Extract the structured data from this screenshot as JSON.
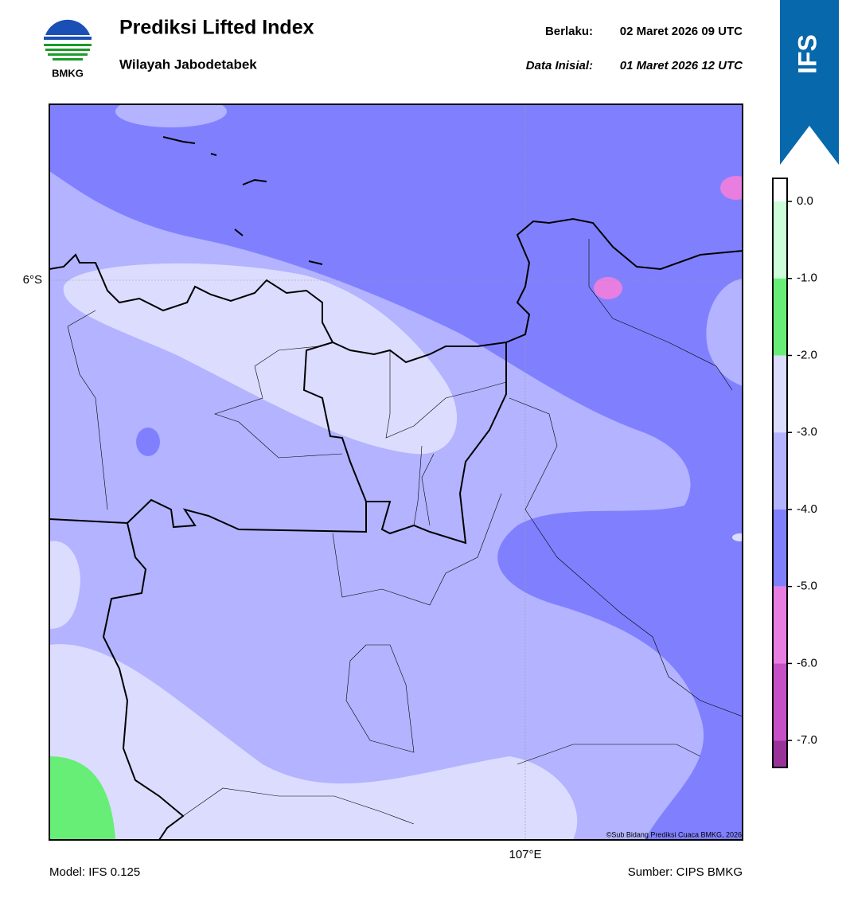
{
  "header": {
    "logo_text": "BMKG",
    "title": "Prediksi Lifted Index",
    "subtitle": "Wilayah Jabodetabek",
    "valid_label": "Berlaku:",
    "valid_time": "02 Maret 2026 09 UTC",
    "init_label": "Data Inisial:",
    "init_time": "01 Maret 2026 12 UTC",
    "badge": "IFS"
  },
  "map": {
    "lat_label": "6°S",
    "lon_label": "107°E",
    "copyright": "©Sub Bidang Prediksi Cuaca BMKG, 2026"
  },
  "colorbar": {
    "lim": [
      -7.35,
      0.3
    ],
    "bounds": [
      0.3,
      0,
      -1,
      -2,
      -3,
      -4,
      -5,
      -6,
      -7,
      -7.35
    ],
    "colors": [
      "#ffffff",
      "#ccffd9",
      "#66ee77",
      "#dcdcff",
      "#b3b3ff",
      "#8080ff",
      "#e87ee0",
      "#c650c6",
      "#993399"
    ],
    "ticks": [
      {
        "value": 0,
        "label": "0.0"
      },
      {
        "value": -1,
        "label": "-1.0"
      },
      {
        "value": -2,
        "label": "-2.0"
      },
      {
        "value": -3,
        "label": "-3.0"
      },
      {
        "value": -4,
        "label": "-4.0"
      },
      {
        "value": -5,
        "label": "-5.0"
      },
      {
        "value": -6,
        "label": "-6.0"
      },
      {
        "value": -7,
        "label": "-7.0"
      }
    ]
  },
  "footer": {
    "model": "Model: IFS 0.125",
    "source": "Sumber: CIPS BMKG"
  }
}
